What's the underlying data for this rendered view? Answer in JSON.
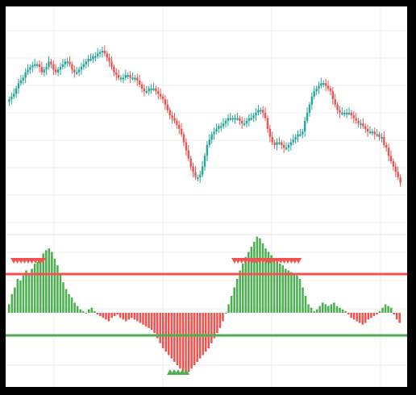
{
  "colors": {
    "up": "#26a69a",
    "down": "#ef5350",
    "osc_positive": "#4caf50",
    "osc_negative": "#ef5350",
    "upper_threshold": "#ef5350",
    "lower_threshold": "#4caf50",
    "grid": "#eeeeee",
    "sell_marker": "#ef5350",
    "buy_marker": "#4caf50",
    "frame": "#000000",
    "background": "#ffffff"
  },
  "chart_data": [
    {
      "type": "candlestick",
      "title": "",
      "grid": true,
      "ylim": [
        0,
        100
      ],
      "close": [
        64,
        66,
        68,
        72,
        76,
        78,
        80,
        84,
        86,
        88,
        89,
        90,
        90,
        88,
        84,
        86,
        88,
        92,
        90,
        86,
        84,
        86,
        88,
        90,
        92,
        92,
        90,
        86,
        84,
        84,
        86,
        88,
        90,
        92,
        94,
        94,
        96,
        96,
        98,
        99,
        100,
        98,
        95,
        92,
        88,
        84,
        82,
        80,
        80,
        80,
        82,
        82,
        80,
        80,
        80,
        78,
        75,
        72,
        70,
        70,
        72,
        72,
        72,
        70,
        68,
        66,
        64,
        60,
        56,
        52,
        50,
        48,
        45,
        42,
        38,
        32,
        26,
        20,
        14,
        10,
        6,
        6,
        8,
        14,
        22,
        30,
        34,
        38,
        40,
        42,
        44,
        44,
        46,
        48,
        50,
        50,
        50,
        50,
        50,
        48,
        46,
        46,
        48,
        50,
        50,
        52,
        54,
        56,
        56,
        54,
        50,
        42,
        36,
        32,
        30,
        32,
        32,
        30,
        28,
        28,
        30,
        32,
        34,
        36,
        38,
        38,
        40,
        48,
        54,
        60,
        66,
        70,
        72,
        74,
        76,
        76,
        74,
        72,
        70,
        64,
        60,
        56,
        54,
        54,
        54,
        54,
        54,
        52,
        50,
        48,
        46,
        46,
        44,
        42,
        40,
        40,
        40,
        38,
        38,
        36,
        36,
        30,
        28,
        22,
        18,
        14,
        10,
        6,
        2
      ],
      "open": [
        62,
        64,
        66,
        68,
        72,
        76,
        78,
        80,
        84,
        86,
        88,
        89,
        90,
        90,
        88,
        84,
        86,
        88,
        92,
        90,
        86,
        84,
        86,
        88,
        90,
        92,
        92,
        90,
        86,
        84,
        84,
        86,
        88,
        90,
        92,
        94,
        94,
        96,
        96,
        98,
        99,
        100,
        98,
        95,
        92,
        88,
        84,
        82,
        80,
        80,
        80,
        82,
        82,
        80,
        80,
        80,
        78,
        75,
        72,
        70,
        70,
        72,
        72,
        72,
        70,
        68,
        66,
        64,
        60,
        56,
        52,
        50,
        48,
        45,
        42,
        38,
        32,
        26,
        20,
        14,
        10,
        6,
        6,
        8,
        14,
        22,
        30,
        34,
        38,
        40,
        42,
        44,
        44,
        46,
        48,
        50,
        50,
        50,
        50,
        50,
        48,
        46,
        46,
        48,
        50,
        50,
        52,
        54,
        56,
        56,
        54,
        50,
        42,
        36,
        32,
        30,
        32,
        32,
        30,
        28,
        28,
        30,
        32,
        34,
        36,
        38,
        38,
        40,
        48,
        54,
        60,
        66,
        70,
        72,
        74,
        76,
        76,
        74,
        72,
        70,
        64,
        60,
        56,
        54,
        54,
        54,
        54,
        54,
        52,
        50,
        48,
        46,
        46,
        44,
        42,
        40,
        40,
        40,
        38,
        38,
        36,
        36,
        30,
        28,
        22,
        18,
        14,
        10,
        6
      ]
    },
    {
      "type": "bar",
      "title": "",
      "grid": true,
      "ylim": [
        -100,
        100
      ],
      "thresholds": {
        "upper": 40,
        "lower": -40
      },
      "values": [
        10,
        22,
        30,
        40,
        38,
        44,
        50,
        46,
        52,
        58,
        60,
        62,
        70,
        74,
        76,
        72,
        64,
        56,
        46,
        36,
        28,
        22,
        18,
        12,
        8,
        4,
        2,
        0,
        4,
        6,
        2,
        -2,
        -4,
        -6,
        -8,
        -10,
        -6,
        -4,
        -2,
        -6,
        -8,
        -10,
        -8,
        -6,
        -8,
        -10,
        -12,
        -14,
        -16,
        -18,
        -20,
        -24,
        -30,
        -36,
        -42,
        -46,
        -50,
        -54,
        -58,
        -62,
        -66,
        -70,
        -72,
        -70,
        -66,
        -62,
        -58,
        -54,
        -50,
        -46,
        -42,
        -36,
        -30,
        -24,
        -18,
        -10,
        0,
        10,
        20,
        30,
        40,
        50,
        58,
        66,
        72,
        78,
        84,
        90,
        88,
        82,
        76,
        72,
        68,
        64,
        60,
        58,
        56,
        52,
        50,
        48,
        46,
        44,
        40,
        30,
        20,
        10,
        6,
        2,
        4,
        8,
        12,
        10,
        8,
        10,
        12,
        8,
        6,
        4,
        2,
        -2,
        -6,
        -8,
        -10,
        -12,
        -14,
        -12,
        -8,
        -6,
        -4,
        -2,
        2,
        6,
        10,
        8,
        6,
        -2,
        -8,
        -12
      ],
      "sell_signals_count": 31,
      "buy_signals_count": 5
    }
  ]
}
